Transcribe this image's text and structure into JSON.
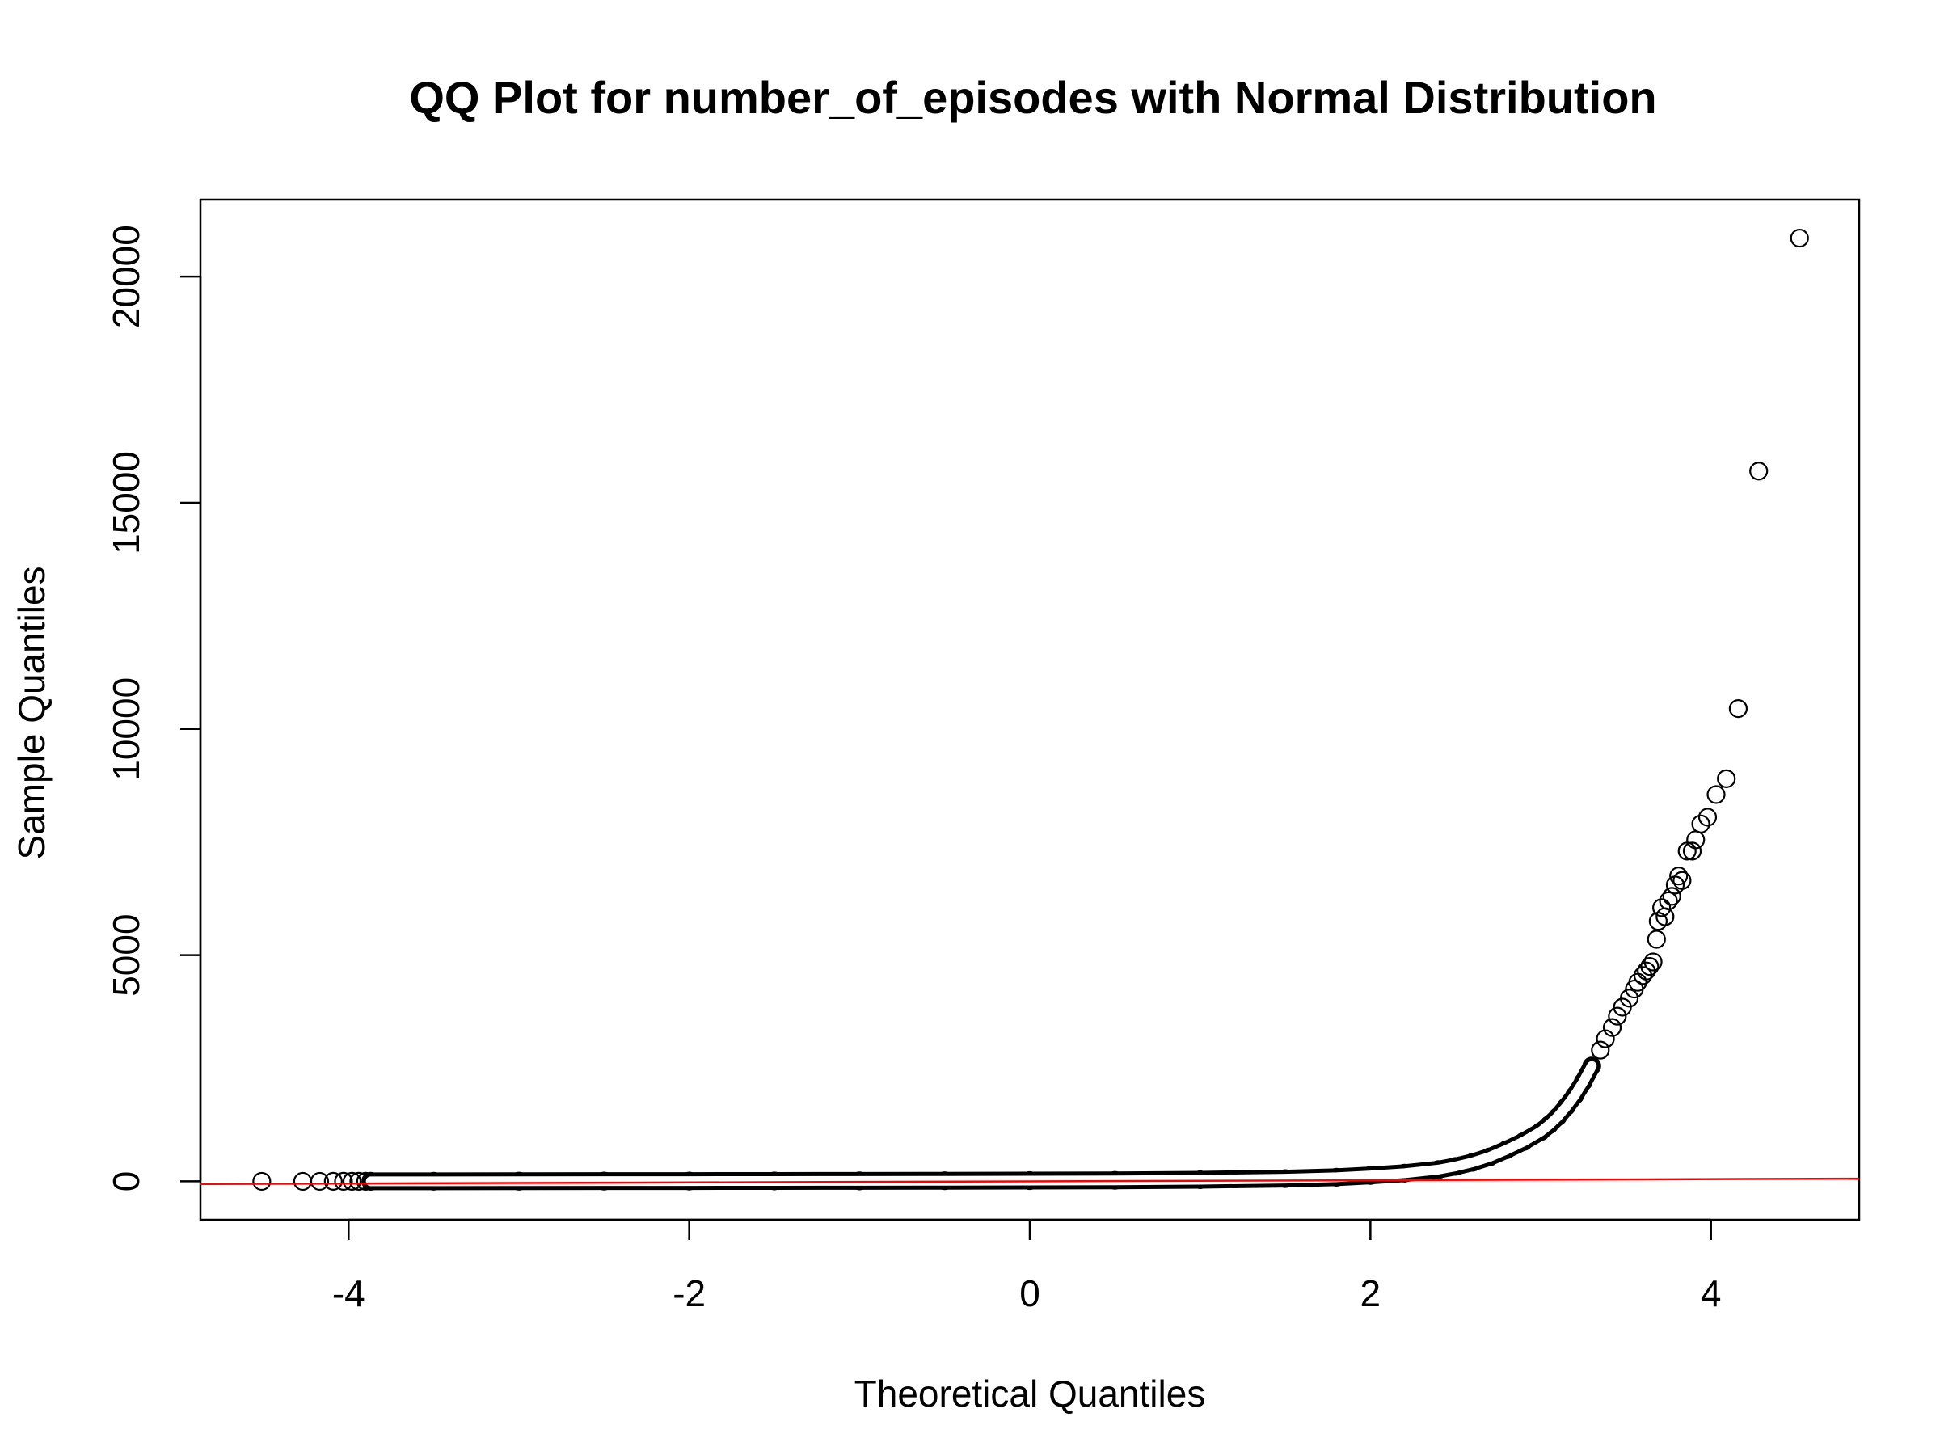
{
  "chart_data": {
    "type": "scatter",
    "title": "QQ Plot for number_of_episodes with Normal Distribution",
    "xlabel": "Theoretical Quantiles",
    "ylabel": "Sample Quantiles",
    "xlim": [
      -4.87,
      4.87
    ],
    "ylim": [
      -850,
      21700
    ],
    "x_ticks": [
      -4,
      -2,
      0,
      2,
      4
    ],
    "x_tick_labels": [
      "-4",
      "-2",
      "0",
      "2",
      "4"
    ],
    "y_ticks": [
      0,
      5000,
      10000,
      15000,
      20000
    ],
    "y_tick_labels": [
      "0",
      "5000",
      "10000",
      "15000",
      "20000"
    ],
    "grid": false,
    "legend": "none",
    "point_color": "#000000",
    "reference_line_color": "#ff0000",
    "reference_line": {
      "x": [
        -4.87,
        4.87
      ],
      "y": [
        -60,
        60
      ]
    },
    "series": [
      {
        "x": [
          -4.51,
          -4.27,
          -4.17,
          -4.09,
          -4.03,
          -3.98,
          -3.94,
          -3.9,
          -3.87,
          -3.5,
          -3.0,
          -2.5,
          -2.0,
          -1.5,
          -1.0,
          -0.5,
          0.0,
          0.5,
          1.0,
          1.5,
          1.8,
          2.0,
          2.2,
          2.4,
          2.5,
          2.6,
          2.7,
          2.8,
          2.9,
          3.0,
          3.05,
          3.1,
          3.15,
          3.2,
          3.25,
          3.3,
          3.35,
          3.38,
          3.42,
          3.45,
          3.48,
          3.52,
          3.55,
          3.57,
          3.6,
          3.62,
          3.64,
          3.66,
          3.68,
          3.69,
          3.71,
          3.73,
          3.75,
          3.77,
          3.79,
          3.81,
          3.83,
          3.86,
          3.89,
          3.91,
          3.94,
          3.98,
          4.03,
          4.09,
          4.16,
          4.28,
          4.52
        ],
        "y": [
          0,
          0,
          0,
          1,
          1,
          1,
          1,
          1,
          1,
          2,
          3,
          5,
          6,
          8,
          10,
          13,
          16,
          22,
          35,
          60,
          90,
          130,
          180,
          260,
          330,
          420,
          540,
          700,
          880,
          1100,
          1250,
          1430,
          1650,
          1900,
          2200,
          2550,
          2900,
          3150,
          3400,
          3650,
          3850,
          4050,
          4250,
          4400,
          4550,
          4650,
          4750,
          4850,
          5350,
          5750,
          6050,
          5850,
          6200,
          6300,
          6550,
          6750,
          6650,
          7300,
          7300,
          7550,
          7900,
          8050,
          8550,
          8900,
          10450,
          15700,
          20850
        ]
      }
    ]
  }
}
